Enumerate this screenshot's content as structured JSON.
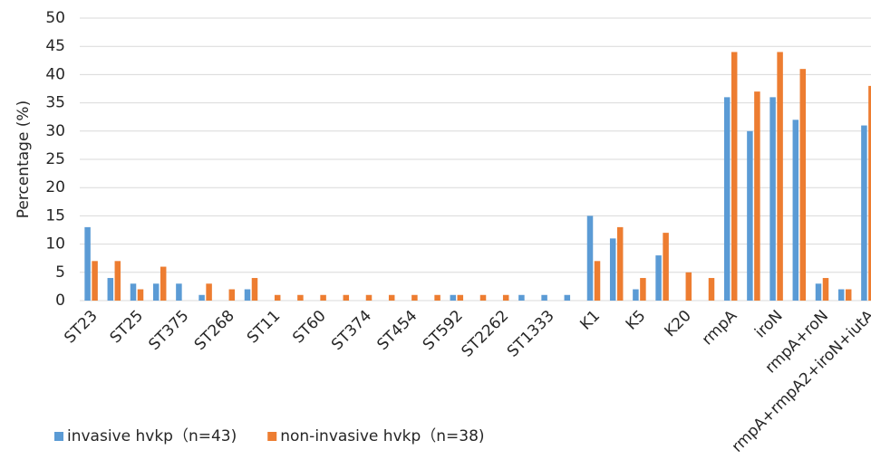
{
  "chart_data": {
    "type": "bar",
    "y_label": "Percentage (%)",
    "categories": [
      "ST23",
      null,
      "ST25",
      null,
      "ST375",
      null,
      "ST268",
      null,
      "ST11",
      null,
      "ST60",
      null,
      "ST374",
      null,
      "ST454",
      null,
      "ST592",
      null,
      "ST2262",
      null,
      "ST1333",
      null,
      "K1",
      null,
      "K5",
      null,
      "K20",
      null,
      "rmpA",
      null,
      "iroN",
      null,
      "rmpA+roN",
      null,
      "rmpA+rmpA2+iroN+iutA"
    ],
    "series": [
      {
        "name": "invasive hvkp（n=43)",
        "color": "#5b9bd5",
        "values": [
          13,
          4,
          3,
          3,
          3,
          1,
          0,
          2,
          0,
          0,
          0,
          0,
          0,
          0,
          0,
          0,
          1,
          0,
          0,
          1,
          1,
          1,
          15,
          11,
          2,
          8,
          0,
          0,
          36,
          30,
          36,
          32,
          3,
          2,
          31
        ]
      },
      {
        "name": "non-invasive hvkp（n=38)",
        "color": "#ed7d31",
        "values": [
          7,
          7,
          2,
          6,
          0,
          3,
          2,
          4,
          1,
          1,
          1,
          1,
          1,
          1,
          1,
          1,
          1,
          1,
          1,
          0,
          0,
          0,
          7,
          13,
          4,
          12,
          5,
          4,
          44,
          37,
          44,
          41,
          4,
          2,
          38
        ]
      }
    ],
    "ylim": [
      0,
      50
    ],
    "yticks": [
      0,
      5,
      10,
      15,
      20,
      25,
      30,
      35,
      40,
      45,
      50
    ],
    "grid": true,
    "legend": "bottom-left"
  }
}
